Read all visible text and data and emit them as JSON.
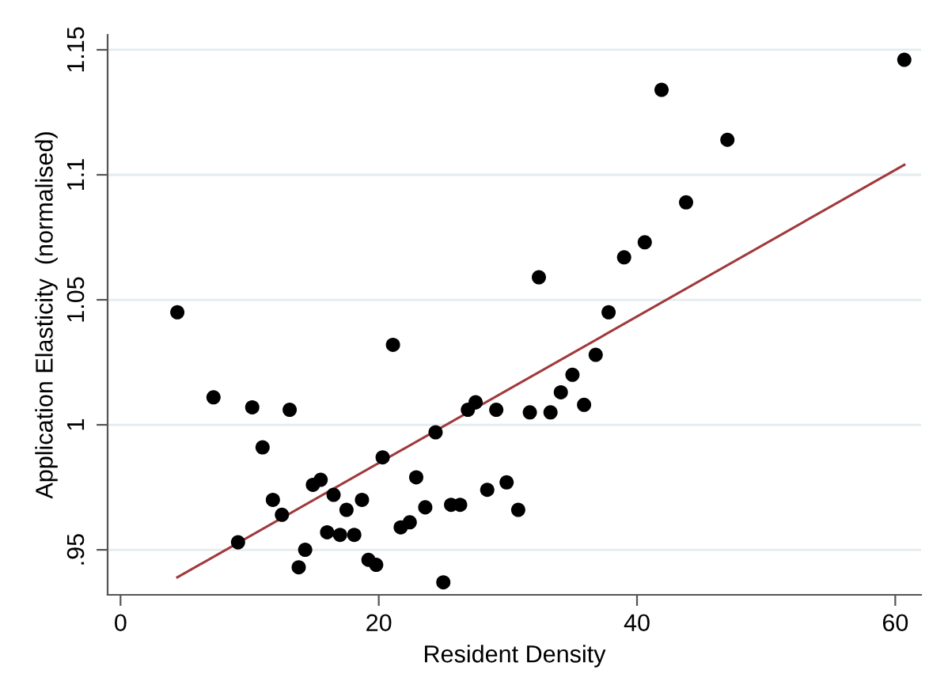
{
  "chart_data": {
    "type": "scatter",
    "xlabel": "Resident Density",
    "ylabel": "Application Elasticity  (normalised)",
    "xlim": [
      -1,
      62
    ],
    "xticks": [
      0,
      20,
      40,
      60
    ],
    "ylim": [
      0.932,
      1.156
    ],
    "yticks": [
      {
        "value": 0.95,
        "label": ".95"
      },
      1,
      1.05,
      1.1,
      1.15
    ],
    "grid": "y",
    "legend": false,
    "marker": "circle",
    "series": [
      {
        "color": "#000000",
        "x": [
          4.4,
          7.2,
          9.1,
          10.2,
          11.0,
          11.8,
          12.5,
          13.1,
          13.8,
          14.3,
          14.9,
          15.5,
          16.0,
          16.5,
          17.0,
          17.5,
          18.1,
          18.7,
          19.2,
          19.8,
          20.3,
          21.1,
          21.7,
          22.4,
          22.9,
          23.6,
          24.4,
          25.0,
          25.6,
          26.3,
          26.9,
          27.5,
          28.4,
          29.1,
          29.9,
          30.8,
          31.7,
          32.4,
          33.3,
          34.1,
          35.0,
          35.9,
          36.8,
          37.8,
          39.0,
          40.6,
          41.9,
          43.8,
          47.0,
          60.7
        ],
        "values": [
          1.045,
          1.011,
          0.953,
          1.007,
          0.991,
          0.97,
          0.964,
          1.006,
          0.943,
          0.95,
          0.976,
          0.978,
          0.957,
          0.972,
          0.956,
          0.966,
          0.956,
          0.97,
          0.946,
          0.944,
          0.987,
          1.032,
          0.959,
          0.961,
          0.979,
          0.967,
          0.997,
          0.937,
          0.968,
          0.968,
          1.006,
          1.009,
          0.974,
          1.006,
          0.977,
          0.966,
          1.005,
          1.059,
          1.005,
          1.013,
          1.02,
          1.008,
          1.028,
          1.045,
          1.067,
          1.073,
          1.134,
          1.089,
          1.114,
          1.146
        ]
      },
      {
        "type": "line",
        "color": "#a0393c",
        "x": [
          4.4,
          60.7
        ],
        "values": [
          0.939,
          1.104
        ],
        "marker": "none",
        "line_style": "solid"
      }
    ]
  }
}
